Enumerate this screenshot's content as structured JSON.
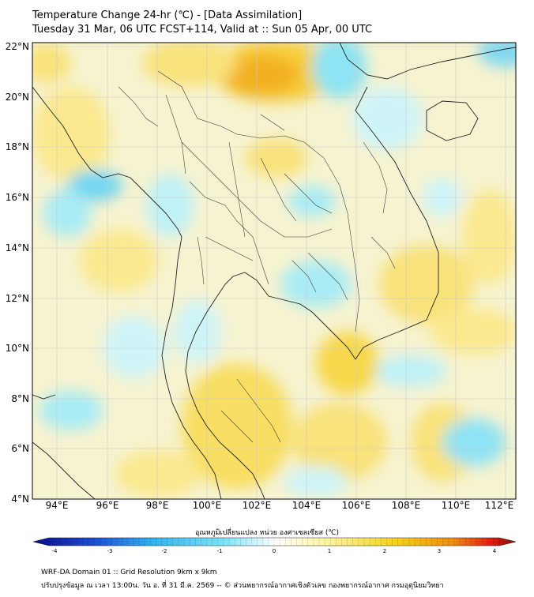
{
  "header": {
    "title_line1": "Temperature Change 24-hr (℃) - [Data Assimilation]",
    "title_line2": "Tuesday 31 Mar, 06 UTC FCST+114, Valid at :: Sun 05 Apr, 00 UTC"
  },
  "map": {
    "lat_labels": [
      "22°N",
      "20°N",
      "18°N",
      "16°N",
      "14°N",
      "12°N",
      "10°N",
      "8°N",
      "6°N",
      "4°N"
    ],
    "lon_labels": [
      "94°E",
      "96°E",
      "98°E",
      "100°E",
      "102°E",
      "104°E",
      "106°E",
      "108°E",
      "110°E",
      "112°E"
    ]
  },
  "colorbar": {
    "title": "อุณหภูมิเปลี่ยนแปลง หน่วย องศาเซลเซียส (℃)",
    "tick_labels": [
      "-4",
      "-3",
      "-2",
      "-1",
      "0",
      "1",
      "2",
      "3",
      "4"
    ],
    "colors": [
      "#0a0a8a",
      "#1d4fd8",
      "#2fb5f0",
      "#5fe0f5",
      "#ffffff",
      "#fdf7a6",
      "#f6d21d",
      "#f08a10",
      "#e01a10",
      "#8a0a0a"
    ]
  },
  "footer": {
    "line1": "WRF-DA Domain 01 :: Grid Resolution 9km x 9km",
    "line2": "ปรับปรุงข้อมูล ณ เวลา 13:00น. วัน อ. ที่ 31 มี.ค. 2569 -- © ส่วนพยากรณ์อากาศเชิงตัวเลข กองพยากรณ์อากาศ กรมอุตุนิยมวิทยา"
  }
}
